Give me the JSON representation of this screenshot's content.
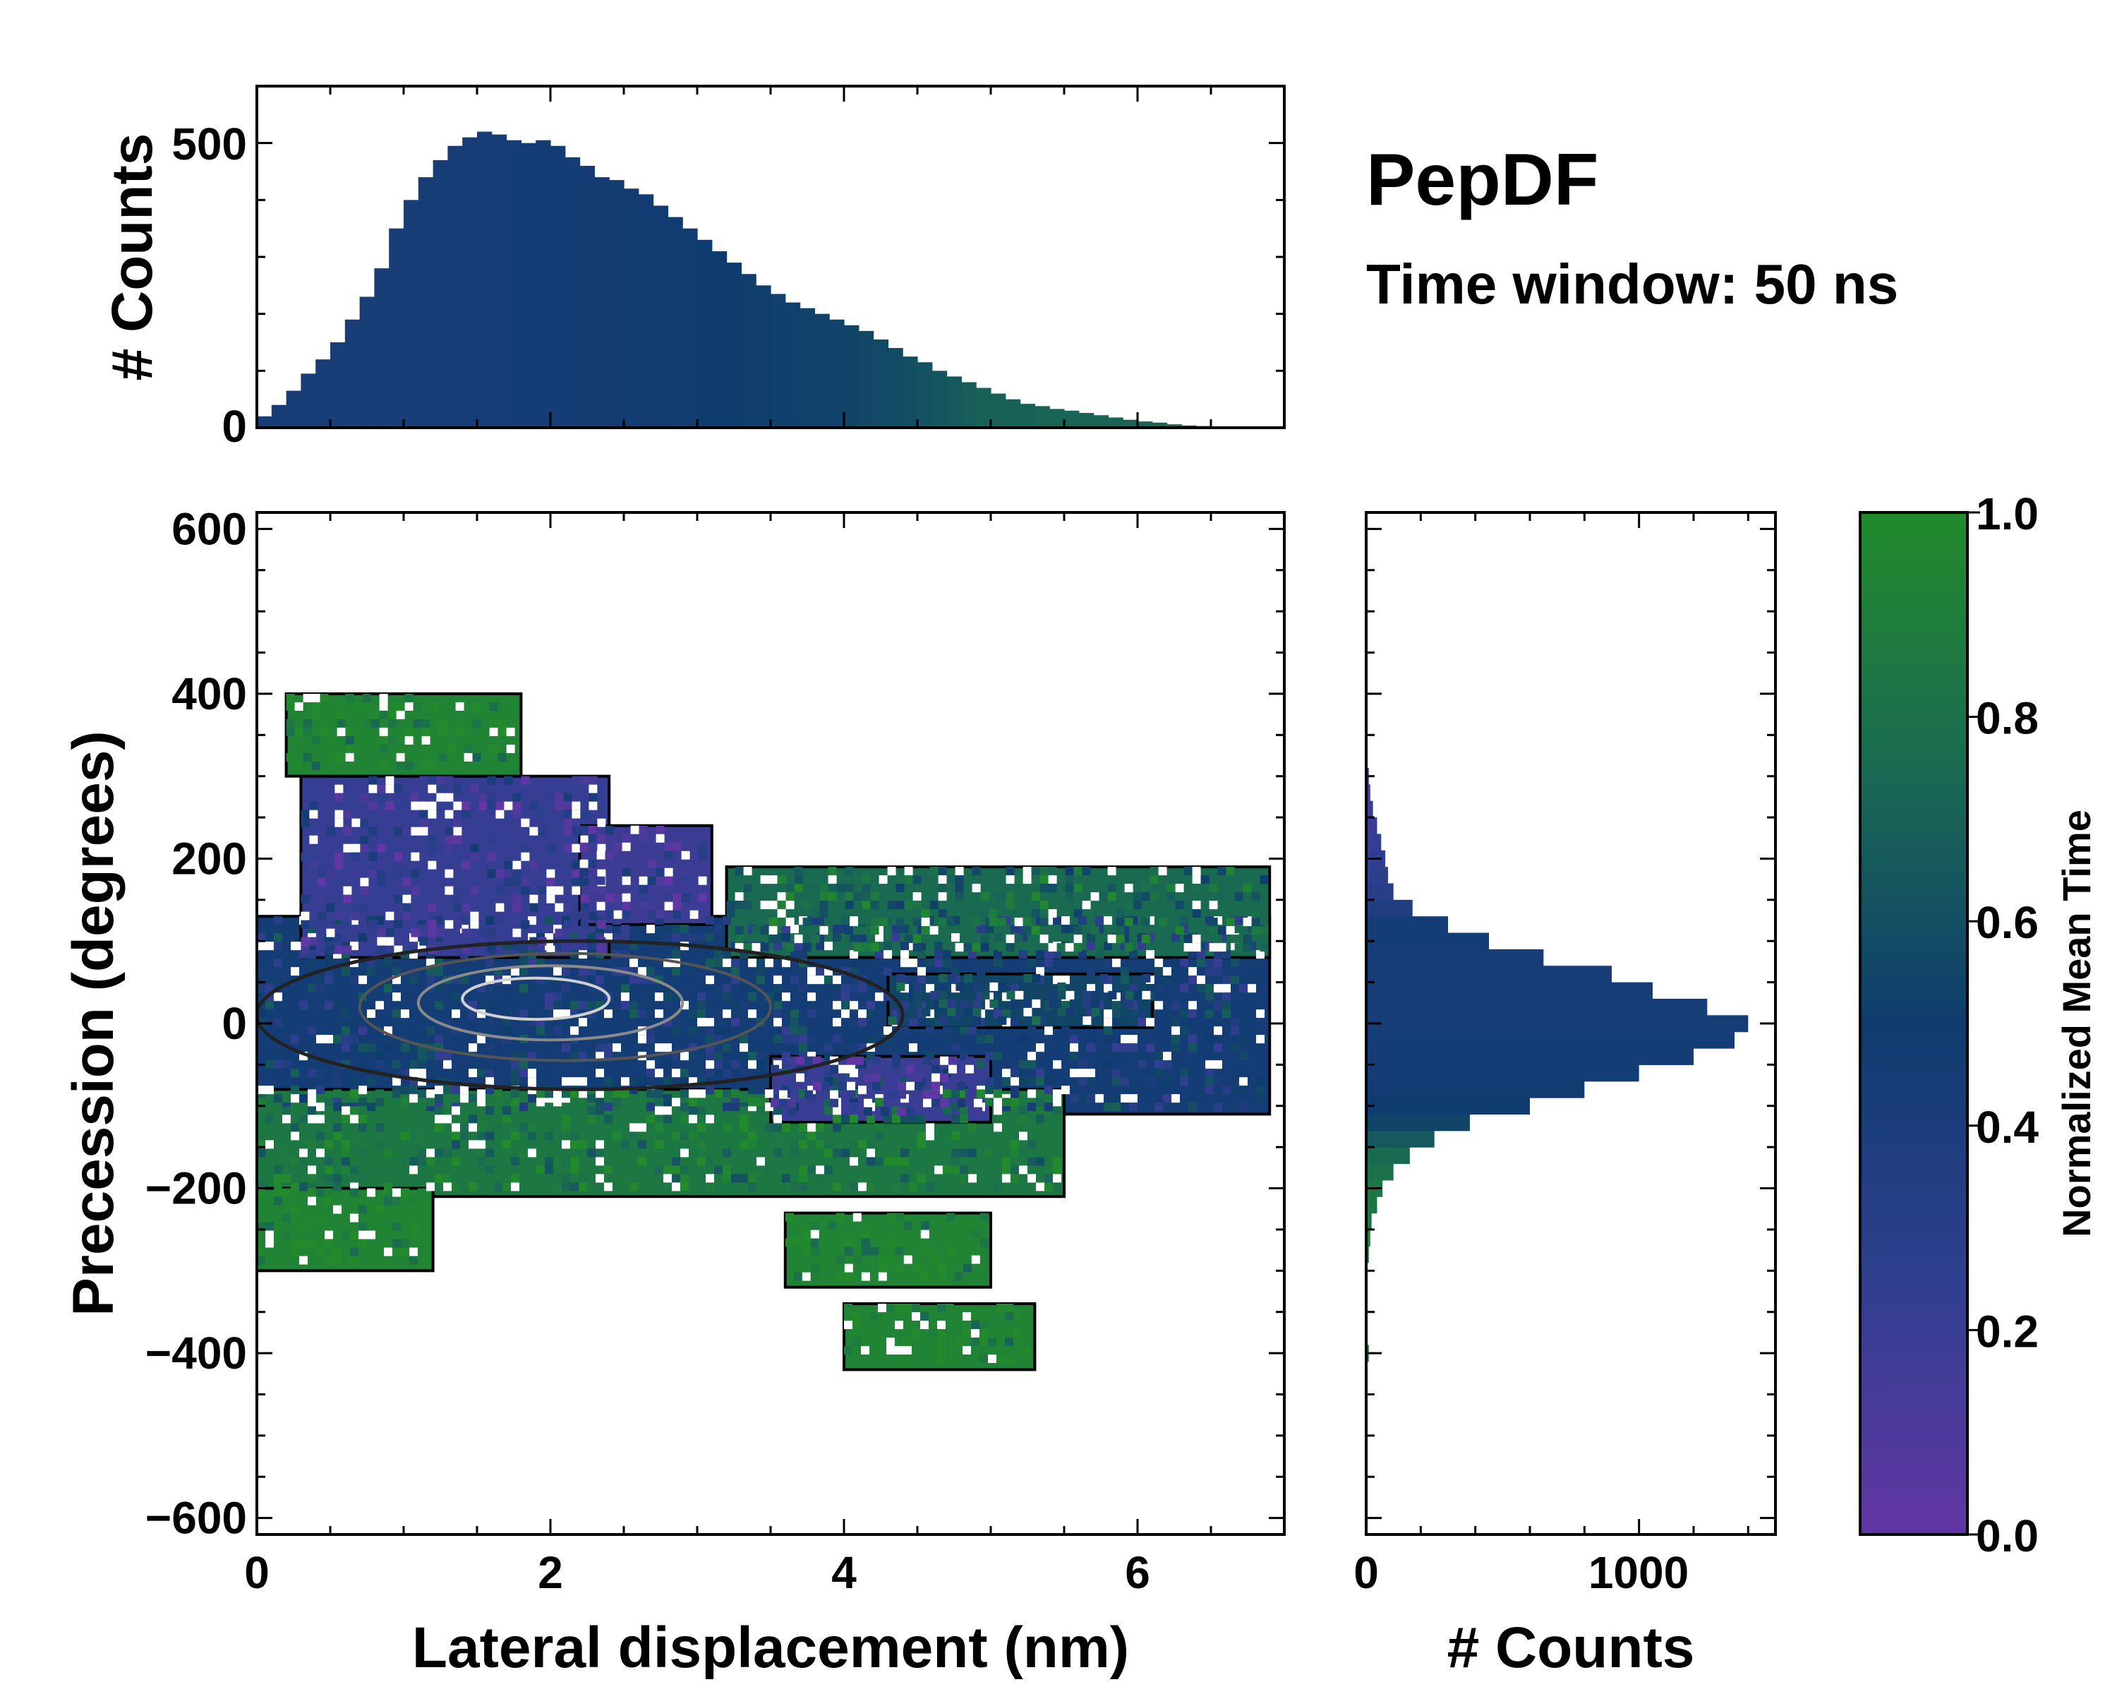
{
  "figure": {
    "title": "PepDF",
    "subtitle": "Time window: 50 ns"
  },
  "chart_data": [
    {
      "panel": "top-marginal",
      "type": "bar",
      "ylabel": "# Counts",
      "xlim": [
        0,
        7
      ],
      "ylim": [
        0,
        600
      ],
      "yticks": [
        0,
        500
      ],
      "x": [
        0.05,
        0.15,
        0.25,
        0.35,
        0.45,
        0.55,
        0.65,
        0.75,
        0.85,
        0.95,
        1.05,
        1.15,
        1.25,
        1.35,
        1.45,
        1.55,
        1.65,
        1.75,
        1.85,
        1.95,
        2.05,
        2.15,
        2.25,
        2.35,
        2.45,
        2.55,
        2.65,
        2.75,
        2.85,
        2.95,
        3.05,
        3.15,
        3.25,
        3.35,
        3.45,
        3.55,
        3.65,
        3.75,
        3.85,
        3.95,
        4.05,
        4.15,
        4.25,
        4.35,
        4.45,
        4.55,
        4.65,
        4.75,
        4.85,
        4.95,
        5.05,
        5.15,
        5.25,
        5.35,
        5.45,
        5.55,
        5.65,
        5.75,
        5.85,
        5.95,
        6.05,
        6.15,
        6.25,
        6.35,
        6.45,
        6.55,
        6.65,
        6.75,
        6.85
      ],
      "values": [
        20,
        40,
        65,
        95,
        120,
        150,
        190,
        230,
        280,
        350,
        400,
        440,
        470,
        495,
        510,
        520,
        515,
        505,
        500,
        505,
        495,
        475,
        460,
        440,
        435,
        420,
        410,
        390,
        370,
        350,
        330,
        310,
        290,
        270,
        250,
        235,
        220,
        210,
        200,
        190,
        180,
        170,
        155,
        140,
        125,
        115,
        100,
        90,
        80,
        70,
        60,
        50,
        42,
        38,
        33,
        30,
        26,
        22,
        18,
        14,
        11,
        9,
        6,
        4,
        3,
        2,
        1,
        1,
        0
      ],
      "value_encoding": "normalized_mean_time",
      "time_values": [
        0.45,
        0.45,
        0.44,
        0.44,
        0.44,
        0.43,
        0.43,
        0.43,
        0.43,
        0.43,
        0.43,
        0.44,
        0.44,
        0.44,
        0.44,
        0.44,
        0.44,
        0.45,
        0.45,
        0.45,
        0.45,
        0.45,
        0.46,
        0.46,
        0.47,
        0.47,
        0.48,
        0.48,
        0.49,
        0.49,
        0.5,
        0.5,
        0.5,
        0.51,
        0.51,
        0.52,
        0.52,
        0.53,
        0.53,
        0.54,
        0.55,
        0.56,
        0.57,
        0.58,
        0.6,
        0.62,
        0.64,
        0.66,
        0.68,
        0.7,
        0.7,
        0.7,
        0.7,
        0.72,
        0.72,
        0.72,
        0.72,
        0.72,
        0.72,
        0.72,
        0.72,
        0.72,
        0.72,
        0.72,
        0.72,
        0.72,
        0.72,
        0.72,
        0.72
      ]
    },
    {
      "panel": "main",
      "type": "heatmap",
      "xlabel": "Lateral displacement (nm)",
      "ylabel": "Precession (degrees)",
      "xlim": [
        0,
        7
      ],
      "ylim": [
        -620,
        620
      ],
      "xticks": [
        0,
        2,
        4,
        6
      ],
      "yticks": [
        -600,
        -400,
        -200,
        0,
        200,
        400,
        600
      ],
      "regions": [
        {
          "name": "central-band",
          "x": [
            0,
            6.9
          ],
          "y": [
            -110,
            130
          ],
          "value": 0.45
        },
        {
          "name": "upper-purple",
          "x": [
            0.3,
            2.4
          ],
          "y": [
            80,
            300
          ],
          "value": 0.22
        },
        {
          "name": "upper-purple-2",
          "x": [
            2.2,
            3.1
          ],
          "y": [
            120,
            240
          ],
          "value": 0.18
        },
        {
          "name": "right-arm-upper",
          "x": [
            3.2,
            6.9
          ],
          "y": [
            80,
            190
          ],
          "value": 0.75
        },
        {
          "name": "right-arm-lower",
          "x": [
            4.3,
            6.1
          ],
          "y": [
            -5,
            60
          ],
          "value": 0.55
        },
        {
          "name": "lower-green",
          "x": [
            0,
            5.5
          ],
          "y": [
            -210,
            -80
          ],
          "value": 0.85
        },
        {
          "name": "lower-purple",
          "x": [
            3.5,
            5.0
          ],
          "y": [
            -120,
            -40
          ],
          "value": 0.2
        },
        {
          "name": "top-left-green",
          "x": [
            0.2,
            1.8
          ],
          "y": [
            300,
            400
          ],
          "value": 0.95
        },
        {
          "name": "bottom-left-green",
          "x": [
            0,
            1.2
          ],
          "y": [
            -300,
            -200
          ],
          "value": 0.95
        },
        {
          "name": "bottom-right-green-a",
          "x": [
            3.6,
            5.0
          ],
          "y": [
            -320,
            -230
          ],
          "value": 0.95
        },
        {
          "name": "bottom-right-green-b",
          "x": [
            4.0,
            5.3
          ],
          "y": [
            -420,
            -340
          ],
          "value": 0.95
        }
      ],
      "contour_levels": [
        0.1,
        0.4,
        0.7,
        0.9
      ]
    },
    {
      "panel": "right-marginal",
      "type": "bar",
      "orientation": "horizontal",
      "xlabel": "# Counts",
      "xlim": [
        0,
        1500
      ],
      "xticks": [
        0,
        1000
      ],
      "y": [
        -400,
        -380,
        -360,
        -340,
        -320,
        -300,
        -280,
        -260,
        -240,
        -220,
        -200,
        -180,
        -160,
        -140,
        -120,
        -100,
        -80,
        -60,
        -40,
        -20,
        0,
        20,
        40,
        60,
        80,
        100,
        120,
        140,
        160,
        180,
        200,
        220,
        240,
        260,
        280,
        300,
        320,
        340
      ],
      "values": [
        10,
        0,
        0,
        0,
        0,
        5,
        10,
        15,
        20,
        40,
        60,
        100,
        160,
        250,
        380,
        600,
        800,
        1000,
        1200,
        1350,
        1400,
        1250,
        1050,
        900,
        650,
        450,
        300,
        170,
        100,
        80,
        70,
        55,
        40,
        25,
        15,
        10,
        5,
        2
      ],
      "value_encoding": "normalized_mean_time",
      "time_values": [
        0.95,
        0.9,
        0.9,
        0.9,
        0.9,
        0.9,
        0.9,
        0.9,
        0.85,
        0.85,
        0.85,
        0.8,
        0.75,
        0.65,
        0.55,
        0.5,
        0.48,
        0.45,
        0.45,
        0.45,
        0.44,
        0.44,
        0.44,
        0.44,
        0.44,
        0.45,
        0.45,
        0.35,
        0.3,
        0.28,
        0.25,
        0.22,
        0.2,
        0.2,
        0.2,
        0.2,
        0.2,
        0.9
      ]
    },
    {
      "panel": "colorbar",
      "type": "colorbar",
      "label": "Normalized Mean Time",
      "range": [
        0,
        1
      ],
      "ticks": [
        "0.0",
        "0.2",
        "0.4",
        "0.6",
        "0.8",
        "1.0"
      ],
      "colors": [
        "#6236a4",
        "#2f3f8f",
        "#0f3c6e",
        "#1a6a52",
        "#228a2c"
      ]
    }
  ]
}
